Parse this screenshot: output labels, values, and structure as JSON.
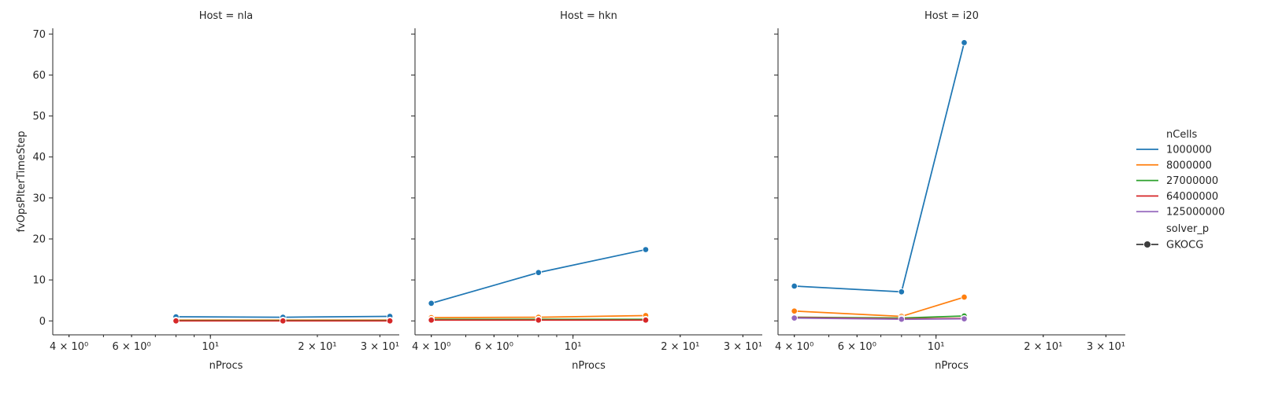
{
  "chart_data": {
    "type": "line",
    "facet_label": "Host",
    "xlabel": "nProcs",
    "ylabel": "fvOpsPIterTimeStep",
    "x_scale": "log",
    "xlim": [
      3.6,
      34
    ],
    "ylim": [
      -3.4,
      71.4
    ],
    "yticks": [
      0,
      10,
      20,
      30,
      40,
      50,
      60,
      70
    ],
    "xticks": [
      {
        "value": 4,
        "label": "4 × 10⁰"
      },
      {
        "value": 6,
        "label": "6 × 10⁰"
      },
      {
        "value": 10,
        "label": "10¹"
      },
      {
        "value": 20,
        "label": "2 × 10¹"
      },
      {
        "value": 30,
        "label": "3 × 10¹"
      }
    ],
    "legend": {
      "hue_title": "nCells",
      "style_title": "solver_p",
      "style_entries": [
        "GKOCG"
      ],
      "placement": "right"
    },
    "colors": {
      "1000000": "#1f77b4",
      "8000000": "#ff7f0e",
      "27000000": "#2ca02c",
      "64000000": "#d62728",
      "125000000": "#9467bd"
    },
    "hue_levels": [
      "1000000",
      "8000000",
      "27000000",
      "64000000",
      "125000000"
    ],
    "panels": [
      {
        "host": "nla",
        "title": "Host = nla",
        "series": [
          {
            "name": "1000000",
            "x": [
              8,
              16,
              32
            ],
            "y": [
              1.0,
              0.9,
              1.1
            ]
          },
          {
            "name": "8000000",
            "x": [
              8,
              16,
              32
            ],
            "y": [
              0.2,
              0.2,
              0.2
            ]
          },
          {
            "name": "27000000",
            "x": [
              8,
              16,
              32
            ],
            "y": [
              0.1,
              0.1,
              0.1
            ]
          },
          {
            "name": "64000000",
            "x": [
              8,
              16,
              32
            ],
            "y": [
              0.0,
              0.0,
              0.0
            ]
          }
        ]
      },
      {
        "host": "hkn",
        "title": "Host = hkn",
        "series": [
          {
            "name": "1000000",
            "x": [
              4,
              8,
              16
            ],
            "y": [
              4.3,
              11.8,
              17.4
            ]
          },
          {
            "name": "8000000",
            "x": [
              4,
              8,
              16
            ],
            "y": [
              0.8,
              0.9,
              1.3
            ]
          },
          {
            "name": "27000000",
            "x": [
              4,
              8,
              16
            ],
            "y": [
              0.4,
              0.4,
              0.4
            ]
          },
          {
            "name": "64000000",
            "x": [
              4,
              8,
              16
            ],
            "y": [
              0.2,
              0.2,
              0.2
            ]
          }
        ]
      },
      {
        "host": "i20",
        "title": "Host = i20",
        "series": [
          {
            "name": "1000000",
            "x": [
              4,
              8,
              12
            ],
            "y": [
              8.5,
              7.1,
              67.9
            ]
          },
          {
            "name": "8000000",
            "x": [
              4,
              8,
              12
            ],
            "y": [
              2.4,
              1.1,
              5.8
            ]
          },
          {
            "name": "27000000",
            "x": [
              4,
              8,
              12
            ],
            "y": [
              0.9,
              0.7,
              1.2
            ]
          },
          {
            "name": "64000000",
            "x": [
              4,
              8,
              12
            ],
            "y": [
              0.8,
              0.5,
              0.6
            ]
          },
          {
            "name": "125000000",
            "x": [
              4,
              8,
              12
            ],
            "y": [
              0.7,
              0.4,
              0.5
            ]
          }
        ]
      }
    ]
  }
}
